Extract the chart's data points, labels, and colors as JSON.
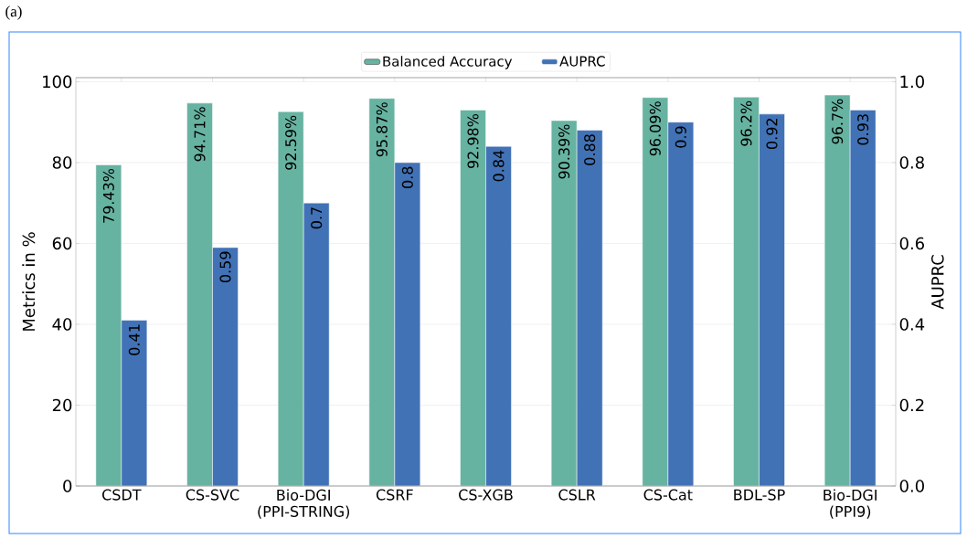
{
  "chart_data": {
    "type": "bar",
    "categories": [
      "CSDT",
      "CS-SVC",
      "Bio-DGI (PPI-STRING)",
      "CSRF",
      "CS-XGB",
      "CSLR",
      "CS-Cat",
      "BDL-SP",
      "Bio-DGI (PPI9)"
    ],
    "series": [
      {
        "name": "Balanced Accuracy",
        "color": "#67b3a1",
        "values": [
          79.43,
          94.71,
          92.59,
          95.87,
          92.98,
          90.39,
          96.09,
          96.2,
          96.7
        ],
        "value_labels": [
          "79.43%",
          "94.71%",
          "92.59%",
          "95.87%",
          "92.98%",
          "90.39%",
          "96.09%",
          "96.2%",
          "96.7%"
        ]
      },
      {
        "name": "AUPRC",
        "color": "#4272b6",
        "axis": "y2",
        "values": [
          0.41,
          0.59,
          0.7,
          0.8,
          0.84,
          0.88,
          0.9,
          0.92,
          0.93
        ],
        "value_labels": [
          "0.41",
          "0.59",
          "0.7",
          "0.8",
          "0.84",
          "0.88",
          "0.9",
          "0.92",
          "0.93"
        ]
      }
    ],
    "ylabel": "Metrics in %",
    "y2label": "AUPRC",
    "ylim": [
      0,
      101
    ],
    "yticks": [
      0,
      20,
      40,
      60,
      80,
      100
    ],
    "y2lim": [
      0,
      1.01
    ],
    "y2ticks": [
      {
        "value": 0,
        "label": "0.0"
      },
      0.2,
      0.4,
      0.6,
      0.8,
      {
        "value": 1,
        "label": "1.0"
      }
    ],
    "grid": "y",
    "legend": "top",
    "annotations": [
      "(a)"
    ]
  }
}
